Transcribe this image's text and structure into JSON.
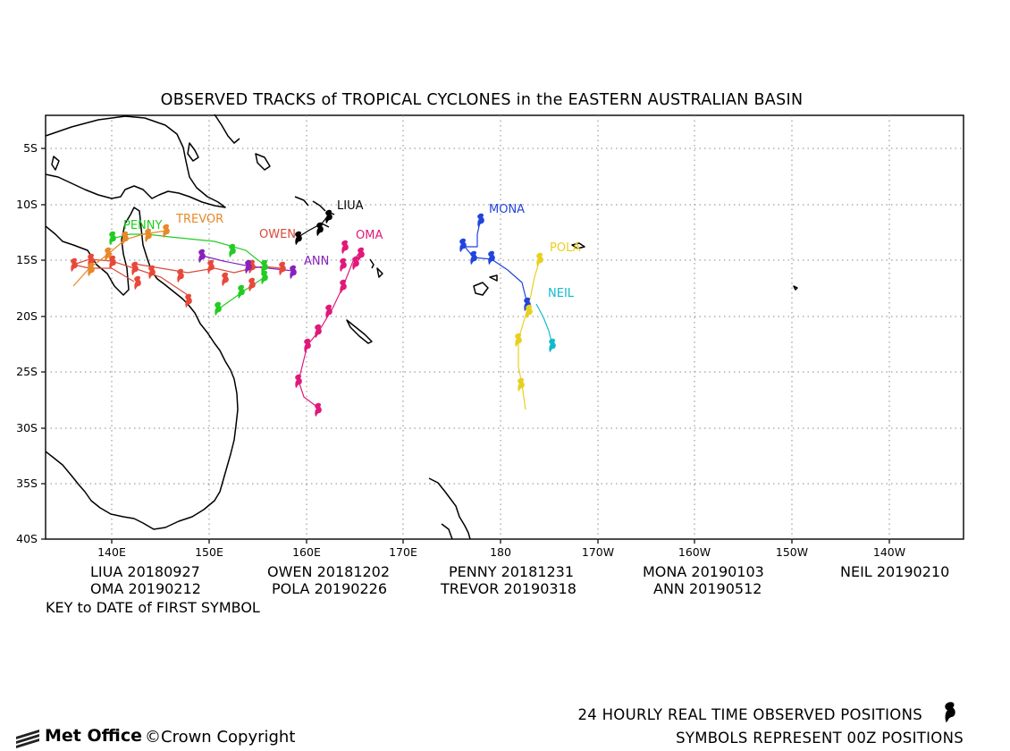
{
  "title": "OBSERVED TRACKS of TROPICAL CYCLONES in the EASTERN AUSTRALIAN BASIN",
  "lat_ticks": [
    "5S",
    "10S",
    "15S",
    "20S",
    "25S",
    "30S",
    "35S",
    "40S"
  ],
  "lon_ticks": [
    "140E",
    "150E",
    "160E",
    "170E",
    "180",
    "170W",
    "160W",
    "150W",
    "140W"
  ],
  "cyclones": [
    {
      "name": "LIUA",
      "date": "20180927",
      "color": "#000000"
    },
    {
      "name": "OWEN",
      "date": "20181202",
      "color": "#d94a3a"
    },
    {
      "name": "PENNY",
      "date": "20181231",
      "color": "#22cc22"
    },
    {
      "name": "MONA",
      "date": "20190103",
      "color": "#2244dd"
    },
    {
      "name": "NEIL",
      "date": "20190210",
      "color": "#11bbcc"
    },
    {
      "name": "OMA",
      "date": "20190212",
      "color": "#e0197a"
    },
    {
      "name": "POLA",
      "date": "20190226",
      "color": "#e8d020"
    },
    {
      "name": "TREVOR",
      "date": "20190318",
      "color": "#e8882a"
    },
    {
      "name": "ANN",
      "date": "20190512",
      "color": "#8822bb"
    }
  ],
  "track_labels": {
    "liua": "LIUA",
    "penny": "PENNY",
    "trevor": "TREVOR",
    "owen": "OWEN",
    "oma": "OMA",
    "ann": "ANN",
    "mona": "MONA",
    "pola": "POLA",
    "neil": "NEIL"
  },
  "key_note": "KEY to DATE of FIRST SYMBOL",
  "footer": {
    "line1": "24 HOURLY REAL TIME OBSERVED POSITIONS",
    "line2": "SYMBOLS REPRESENT 00Z POSITIONS",
    "brand": "Met Office",
    "copyright": "©Crown Copyright"
  },
  "symbol_icon": "tropical-cyclone-symbol-icon",
  "brand_icon": "met-office-logo-icon"
}
